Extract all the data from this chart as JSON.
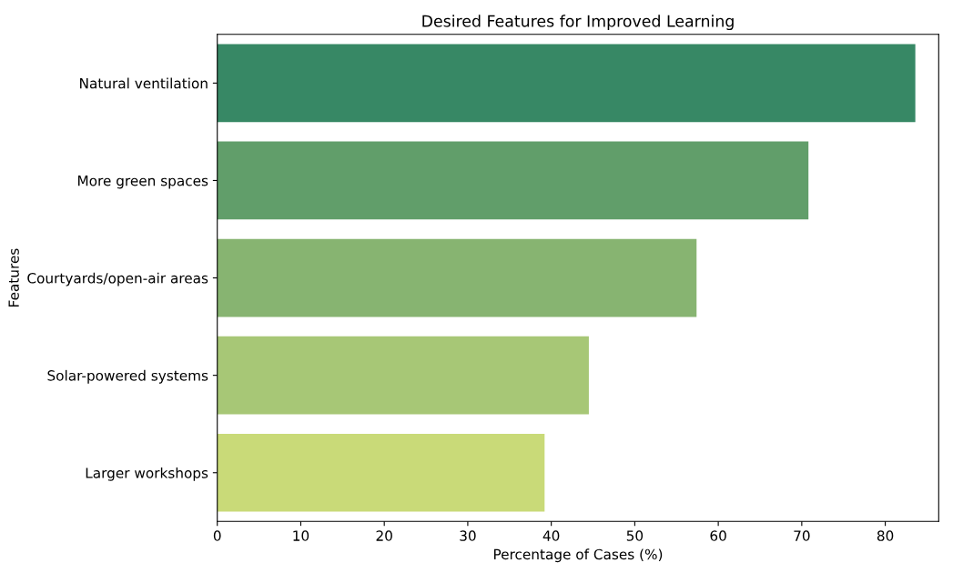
{
  "chart_data": {
    "type": "bar",
    "orientation": "horizontal",
    "title": "Desired Features for Improved Learning",
    "xlabel": "Percentage of Cases (%)",
    "ylabel": "Features",
    "categories": [
      "Natural ventilation",
      "More green spaces",
      "Courtyards/open-air areas",
      "Solar-powered systems",
      "Larger workshops"
    ],
    "values": [
      83.6,
      70.8,
      57.4,
      44.5,
      39.2
    ],
    "colors": [
      "#378865",
      "#619e6a",
      "#87b471",
      "#a7c776",
      "#c9da78"
    ],
    "xlim": [
      0,
      86.4
    ],
    "xticks": [
      0,
      10,
      20,
      30,
      40,
      50,
      60,
      70,
      80
    ],
    "grid": false
  }
}
